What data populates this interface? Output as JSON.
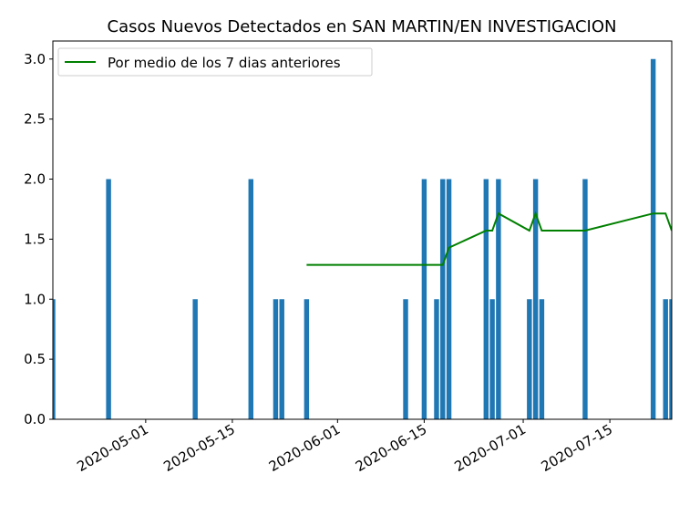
{
  "chart_data": {
    "type": "bar",
    "title": "Casos Nuevos Detectados en SAN MARTIN/EN INVESTIGACION",
    "xlabel": "",
    "ylabel": "",
    "ylim": [
      0,
      3.15
    ],
    "xlim": [
      "2020-04-16",
      "2020-07-25"
    ],
    "yticks": [
      "0.0",
      "0.5",
      "1.0",
      "1.5",
      "2.0",
      "2.5",
      "3.0"
    ],
    "xticks": [
      "2020-05-01",
      "2020-05-15",
      "2020-06-01",
      "2020-06-15",
      "2020-07-01",
      "2020-07-15"
    ],
    "bars": {
      "color": "#1f77b4",
      "dates": [
        "2020-04-16",
        "2020-04-25",
        "2020-05-09",
        "2020-05-18",
        "2020-05-22",
        "2020-05-23",
        "2020-05-27",
        "2020-06-12",
        "2020-06-15",
        "2020-06-17",
        "2020-06-18",
        "2020-06-19",
        "2020-06-25",
        "2020-06-26",
        "2020-06-27",
        "2020-07-02",
        "2020-07-03",
        "2020-07-04",
        "2020-07-11",
        "2020-07-22",
        "2020-07-24",
        "2020-07-25"
      ],
      "values": [
        1,
        2,
        1,
        2,
        1,
        1,
        1,
        1,
        2,
        1,
        2,
        2,
        2,
        1,
        2,
        1,
        2,
        1,
        2,
        3,
        1,
        1
      ]
    },
    "series": [
      {
        "name": "Por medio de los 7 dias anteriores",
        "color": "#008000",
        "x": [
          "2020-05-27",
          "2020-06-18",
          "2020-06-19",
          "2020-06-25",
          "2020-06-26",
          "2020-06-27",
          "2020-07-02",
          "2020-07-03",
          "2020-07-04",
          "2020-07-11",
          "2020-07-22",
          "2020-07-24",
          "2020-07-25"
        ],
        "values": [
          1.286,
          1.286,
          1.429,
          1.571,
          1.571,
          1.714,
          1.571,
          1.714,
          1.571,
          1.571,
          1.714,
          1.714,
          1.571
        ]
      }
    ],
    "legend": "top-left",
    "grid": false
  }
}
